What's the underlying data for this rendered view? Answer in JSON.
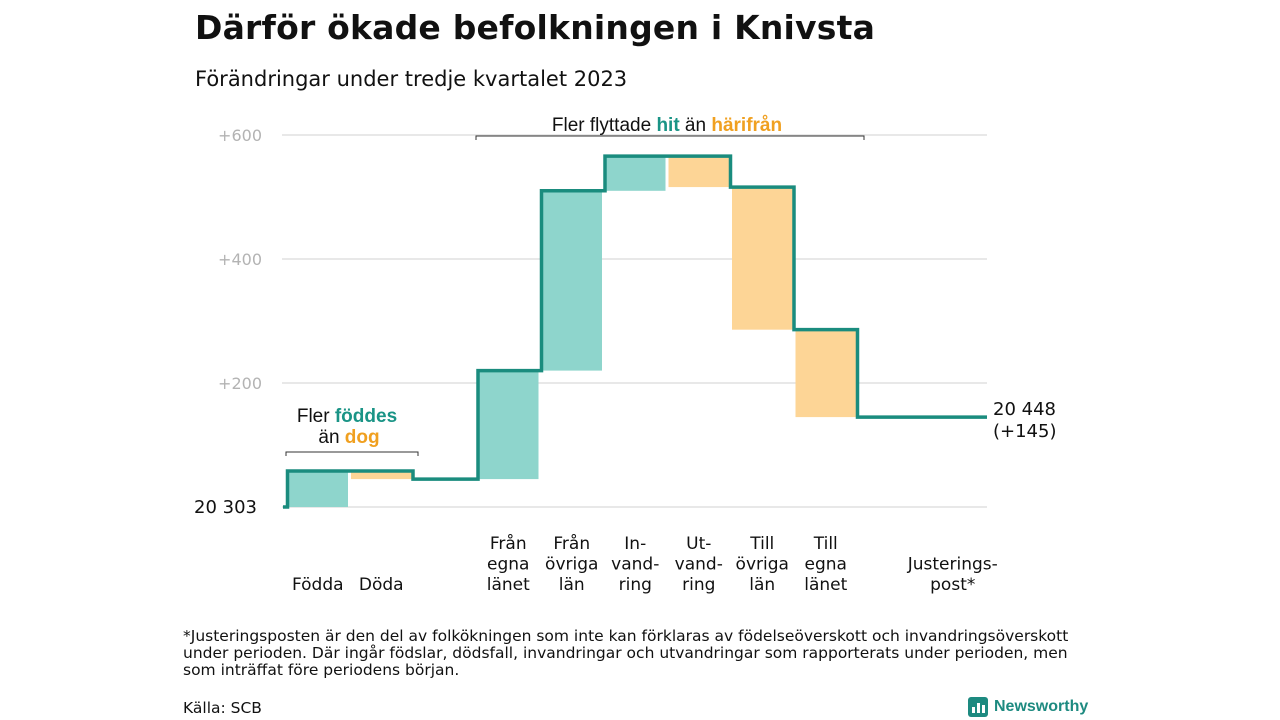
{
  "title": "Därför ökade befolkningen i Knivsta",
  "subtitle": "Förändringar under tredje kvartalet 2023",
  "chart_data": {
    "type": "waterfall",
    "start_label": "20  303",
    "end_label": [
      "20 448",
      "(+145)"
    ],
    "ylim": [
      0,
      600
    ],
    "yticks": [
      {
        "value": 200,
        "label": "+200"
      },
      {
        "value": 400,
        "label": "+400"
      },
      {
        "value": 600,
        "label": "+600"
      }
    ],
    "steps": [
      {
        "category": [
          "Födda"
        ],
        "change": 58,
        "kind": "in"
      },
      {
        "category": [
          "Döda"
        ],
        "change": -13,
        "kind": "out"
      },
      {
        "category": [
          "Från",
          "egna",
          "länet"
        ],
        "change": 175,
        "kind": "in"
      },
      {
        "category": [
          "Från",
          "övriga",
          "län"
        ],
        "change": 290,
        "kind": "in"
      },
      {
        "category": [
          "In-",
          "vand-",
          "ring"
        ],
        "change": 56,
        "kind": "in"
      },
      {
        "category": [
          "Ut-",
          "vand-",
          "ring"
        ],
        "change": -50,
        "kind": "out"
      },
      {
        "category": [
          "Till",
          "övriga",
          "län"
        ],
        "change": -230,
        "kind": "out"
      },
      {
        "category": [
          "Till",
          "egna",
          "länet"
        ],
        "change": -141,
        "kind": "out"
      },
      {
        "category": [
          "Justerings-",
          "post*"
        ],
        "change": 0,
        "kind": "adjust"
      }
    ],
    "colors": {
      "in": "#8ed5cc",
      "out": "#fdd596",
      "line": "#1a8c7e",
      "highlight_in": "#1a9486",
      "highlight_out": "#f0a020",
      "grid": "#d9d9d9",
      "tick": "#b3b3b3"
    },
    "annotations": {
      "births": {
        "line1": [
          "Fler ",
          "föddes"
        ],
        "line2": [
          "än ",
          "dog"
        ]
      },
      "migration": [
        "Fler flyttade ",
        "hit",
        " än ",
        "härifrån"
      ]
    }
  },
  "footnote": "*Justeringsposten är den del av folkökningen som inte kan förklaras av födelseöverskott och invandringsöverskott under perioden. Där ingår födslar, dödsfall, invandringar och utvandringar som rapporterats under perioden, men som inträffat före periodens början.",
  "source": "Källa: SCB",
  "brand": "Newsworthy"
}
